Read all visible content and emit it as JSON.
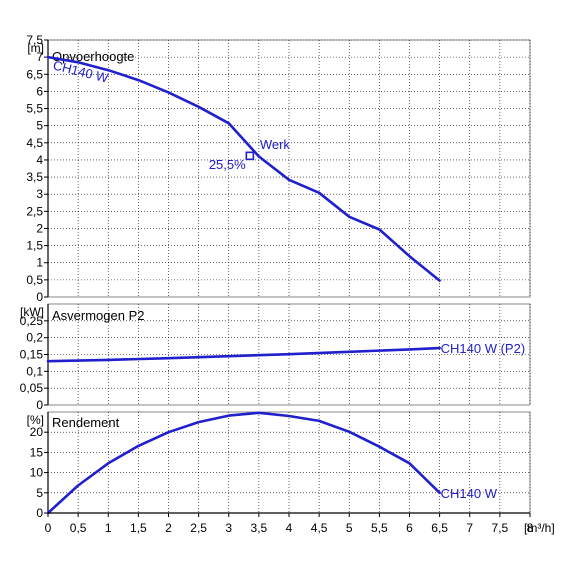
{
  "colors": {
    "curve": "#2020cc",
    "text": "#000000",
    "axis": "#000000",
    "grid": "#000000",
    "frame": "#888888"
  },
  "x_axis": {
    "unit": "[m³/h]",
    "ticks": [
      "0",
      "0,5",
      "1",
      "1,5",
      "2",
      "2,5",
      "3",
      "3,5",
      "4",
      "4,5",
      "5",
      "5,5",
      "6",
      "6,5",
      "7",
      "7,5",
      "8"
    ],
    "tick_values": [
      0,
      0.5,
      1,
      1.5,
      2,
      2.5,
      3,
      3.5,
      4,
      4.5,
      5,
      5.5,
      6,
      6.5,
      7,
      7.5,
      8
    ],
    "range": [
      0,
      8
    ]
  },
  "chart_data": [
    {
      "type": "line",
      "title": "Opvoerhoogte",
      "ylabel": "[m]",
      "ylim": [
        0,
        7.5
      ],
      "yticks": [
        "7,5",
        "7",
        "6,5",
        "6",
        "5,5",
        "5",
        "4,5",
        "4",
        "3,5",
        "3",
        "2,5",
        "2",
        "1,5",
        "1",
        "0,5",
        "0"
      ],
      "ytick_values": [
        7.5,
        7,
        6.5,
        6,
        5.5,
        5,
        4.5,
        4,
        3.5,
        3,
        2.5,
        2,
        1.5,
        1,
        0.5,
        0
      ],
      "grid": true,
      "series": [
        {
          "name": "CH140 W",
          "x": [
            0,
            0.5,
            1,
            1.5,
            2,
            2.5,
            3,
            3.5,
            4,
            4.5,
            5,
            5.5,
            6,
            6.5
          ],
          "y": [
            7.0,
            6.85,
            6.62,
            6.33,
            5.97,
            5.55,
            5.07,
            4.1,
            3.42,
            3.04,
            2.34,
            1.97,
            1.19,
            0.48
          ]
        }
      ],
      "annotations": {
        "series_label": "CH140 W",
        "duty_point": {
          "x": 3.35,
          "y": 4.12,
          "label": "Werk",
          "efficiency_label": "25,5%"
        }
      }
    },
    {
      "type": "line",
      "title": "Asvermogen P2",
      "ylabel": "[kW]",
      "ylim": [
        0,
        0.3
      ],
      "yticks": [
        "0,25",
        "0,2",
        "0,15",
        "0,1",
        "0,05",
        "0"
      ],
      "ytick_values": [
        0.25,
        0.2,
        0.15,
        0.1,
        0.05,
        0
      ],
      "grid": true,
      "series": [
        {
          "name": "CH140 W (P2)",
          "x": [
            0,
            1,
            2,
            3,
            4,
            5,
            6,
            6.5
          ],
          "y": [
            0.13,
            0.134,
            0.139,
            0.145,
            0.151,
            0.158,
            0.165,
            0.169
          ]
        }
      ],
      "annotations": {
        "series_label": "CH140 W (P2)"
      }
    },
    {
      "type": "line",
      "title": "Rendement",
      "ylabel": "[%]",
      "ylim": [
        0,
        25
      ],
      "yticks": [
        "20",
        "15",
        "10",
        "5",
        "0"
      ],
      "ytick_values": [
        20,
        15,
        10,
        5,
        0
      ],
      "grid": true,
      "series": [
        {
          "name": "CH140 W",
          "x": [
            0,
            0.5,
            1,
            1.5,
            2,
            2.5,
            3,
            3.5,
            4,
            4.5,
            5,
            5.5,
            6,
            6.5
          ],
          "y": [
            0,
            6.8,
            12.3,
            16.6,
            20.0,
            22.5,
            24.1,
            24.8,
            24.0,
            22.8,
            20.1,
            16.4,
            12.3,
            5.0
          ]
        }
      ],
      "annotations": {
        "series_label": "CH140 W"
      }
    }
  ]
}
